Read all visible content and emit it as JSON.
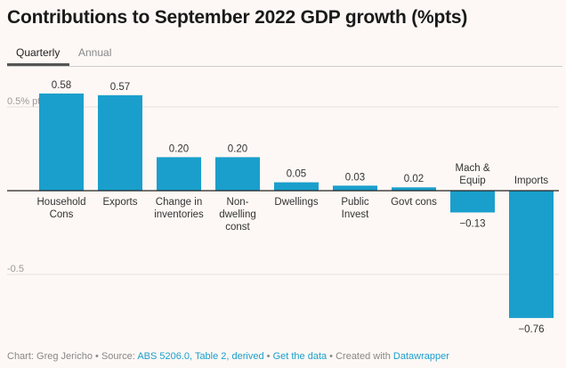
{
  "header": {
    "title": "Contributions to September 2022 GDP growth (%pts)"
  },
  "tabs": [
    {
      "label": "Quarterly",
      "active": true
    },
    {
      "label": "Annual",
      "active": false
    }
  ],
  "colors": {
    "bar": "#1a9fcc",
    "grid": "#e4e0dd",
    "axis_label": "#999999"
  },
  "chart_data": {
    "type": "bar",
    "title": "Contributions to September 2022 GDP growth (%pts)",
    "xlabel": "",
    "ylabel": "",
    "ylim": [
      -0.8,
      0.6
    ],
    "yticks": [
      {
        "value": 0.5,
        "label": "0.5% pts"
      },
      {
        "value": -0.5,
        "label": "-0.5"
      }
    ],
    "categories": [
      {
        "lines": [
          "Household",
          "Cons"
        ]
      },
      {
        "lines": [
          "Exports"
        ]
      },
      {
        "lines": [
          "Change in",
          "inventories"
        ]
      },
      {
        "lines": [
          "Non-",
          "dwelling",
          "const"
        ]
      },
      {
        "lines": [
          "Dwellings"
        ]
      },
      {
        "lines": [
          "Public",
          "Invest"
        ]
      },
      {
        "lines": [
          "Govt cons"
        ]
      },
      {
        "lines": [
          "Mach &",
          "Equip"
        ]
      },
      {
        "lines": [
          "Imports"
        ]
      }
    ],
    "values": [
      0.58,
      0.57,
      0.2,
      0.2,
      0.05,
      0.03,
      0.02,
      -0.13,
      -0.76
    ],
    "value_labels": [
      "0.58",
      "0.57",
      "0.20",
      "0.20",
      "0.05",
      "0.03",
      "0.02",
      "-0.13",
      "-0.76"
    ],
    "grid": true
  },
  "footer": {
    "prefix": "Chart: Greg Jericho • Source: ",
    "source_link": "ABS 5206.0, Table 2, derived",
    "sep1": " • ",
    "data_link": "Get the data",
    "sep2": " • Created with ",
    "dw_link": "Datawrapper"
  }
}
